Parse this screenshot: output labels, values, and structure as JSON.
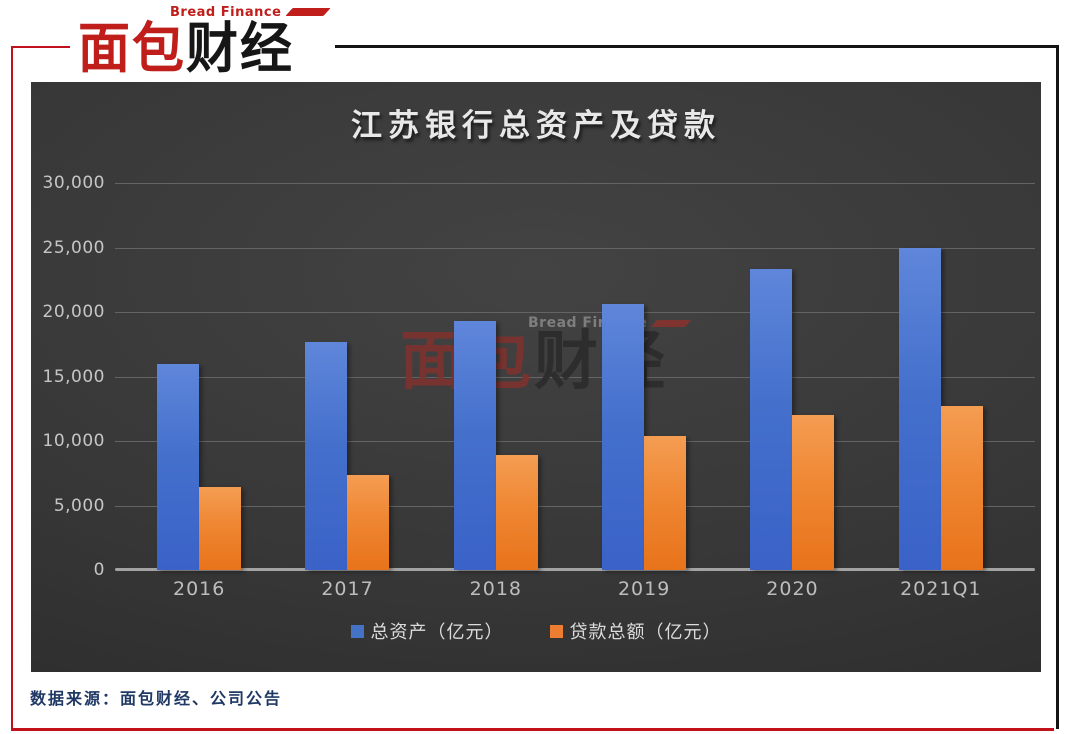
{
  "brand": {
    "english": "Bread Finance",
    "chinese_red": "面包",
    "chinese_black": "财经"
  },
  "chart_data": {
    "type": "bar",
    "title": "江苏银行总资产及贷款",
    "categories": [
      "2016",
      "2017",
      "2018",
      "2019",
      "2020",
      "2021Q1"
    ],
    "series": [
      {
        "name": "总资产（亿元）",
        "color": "#4472c4",
        "values": [
          16000,
          17700,
          19300,
          20600,
          23300,
          25000
        ]
      },
      {
        "name": "贷款总额（亿元）",
        "color": "#ed7d31",
        "values": [
          6400,
          7400,
          8900,
          10400,
          12000,
          12700
        ]
      }
    ],
    "ylim": [
      0,
      30000
    ],
    "yticks": [
      0,
      5000,
      10000,
      15000,
      20000,
      25000,
      30000
    ],
    "ytick_labels": [
      "0",
      "5,000",
      "10,000",
      "15,000",
      "20,000",
      "25,000",
      "30,000"
    ],
    "grid": "horizontal",
    "legend_position": "bottom",
    "colors": {
      "background": "#373737",
      "bar_blue": "#4472c4",
      "bar_orange": "#ed7d31",
      "gridline": "#646464",
      "axis_line": "#a3a3a3",
      "tick_text": "#c6c6c6",
      "title_text": "#e8e8e8",
      "frame_red": "#c1121c",
      "frame_black": "#141414"
    }
  },
  "watermark": {
    "english": "Bread Finance",
    "chinese_red": "面包",
    "chinese_black": "财经"
  },
  "footer": {
    "source": "数据来源：面包财经、公司公告"
  }
}
